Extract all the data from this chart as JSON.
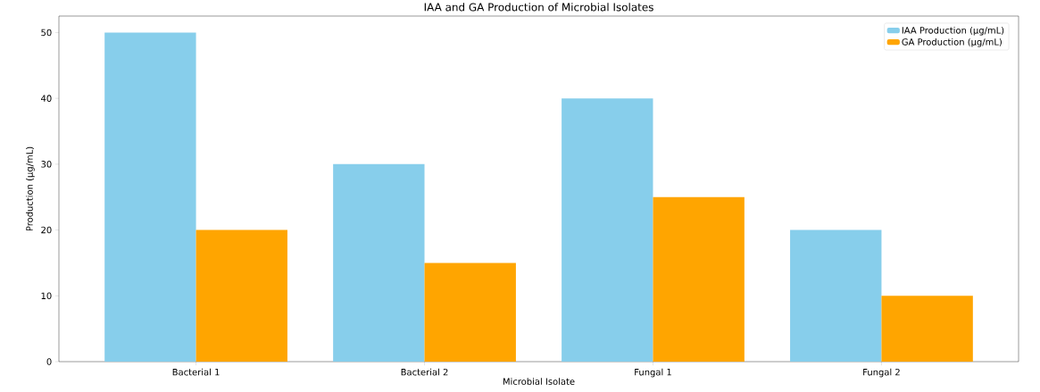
{
  "chart_data": {
    "type": "bar",
    "title": "IAA and GA Production of Microbial Isolates",
    "xlabel": "Microbial Isolate",
    "ylabel": "Production (µg/mL)",
    "categories": [
      "Bacterial 1",
      "Bacterial 2",
      "Fungal 1",
      "Fungal 2"
    ],
    "series": [
      {
        "name": "IAA Production (µg/mL)",
        "color": "#87ceeb",
        "values": [
          50,
          30,
          40,
          20
        ]
      },
      {
        "name": "GA Production (µg/mL)",
        "color": "#ffa500",
        "values": [
          20,
          15,
          25,
          10
        ]
      }
    ],
    "ylim": [
      0,
      52.5
    ],
    "yticks": [
      0,
      10,
      20,
      30,
      40,
      50
    ],
    "legend": "top right",
    "grid": false
  }
}
